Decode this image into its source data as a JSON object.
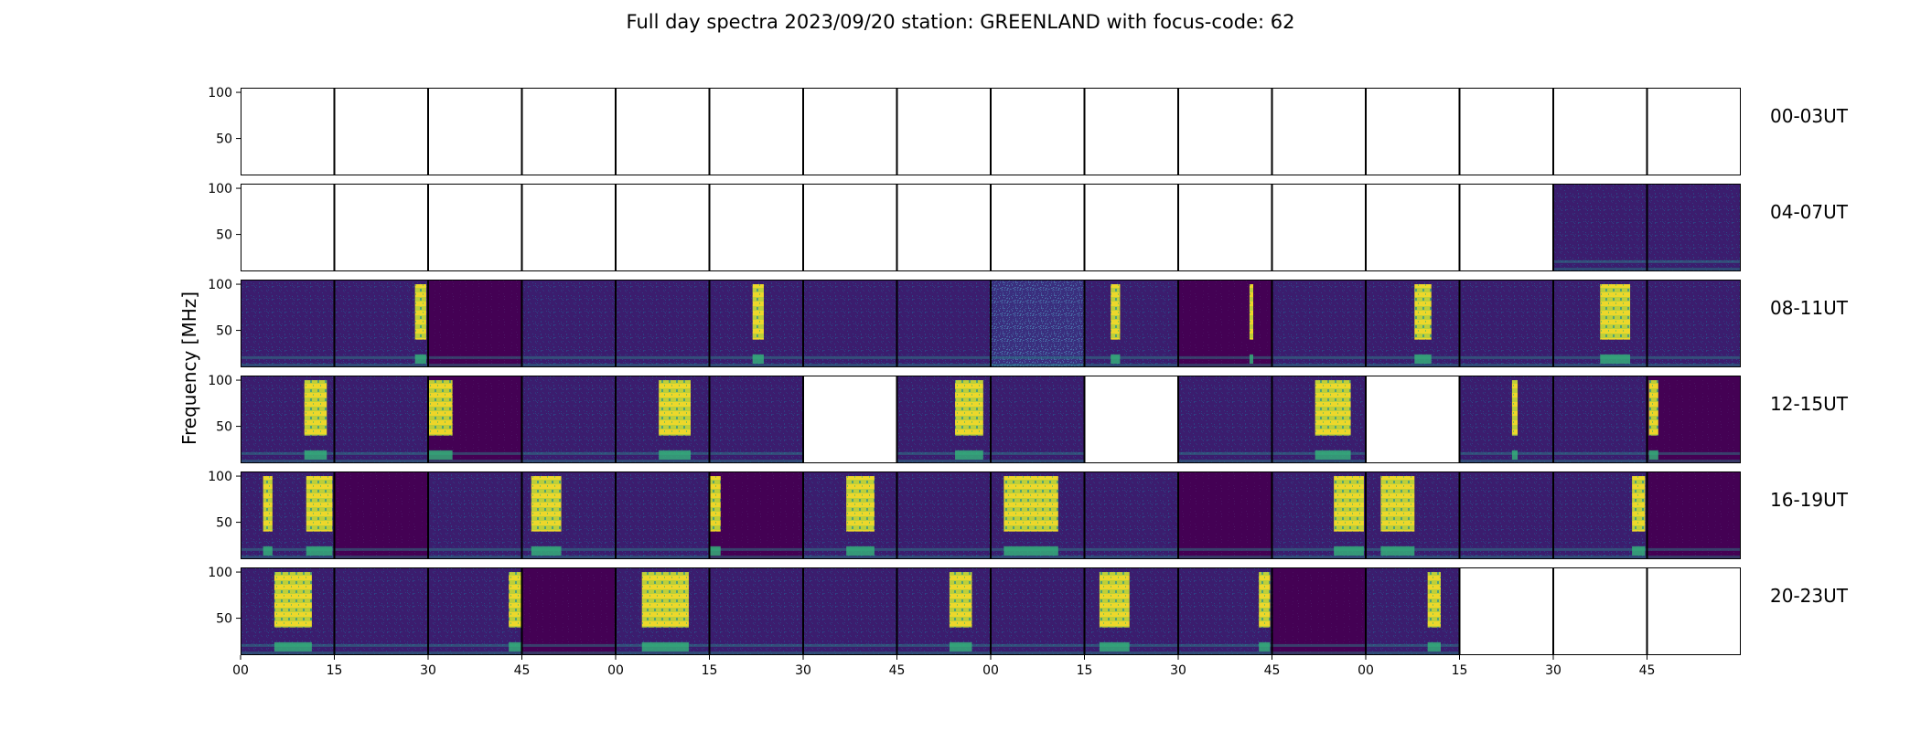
{
  "chart_data": {
    "type": "heatmap",
    "title": "Full day spectra 2023/09/20 station: GREENLAND with focus-code: 62",
    "ylabel": "Frequency [MHz]",
    "ylim": [
      10,
      105
    ],
    "yticks": [
      50,
      100
    ],
    "xticks": [
      "00",
      "15",
      "30",
      "45",
      "00",
      "15",
      "30",
      "45",
      "00",
      "15",
      "30",
      "45",
      "00",
      "15",
      "30",
      "45"
    ],
    "rows": [
      {
        "label": "00-03UT",
        "panels": [
          {
            "has_data": false
          },
          {
            "has_data": false
          },
          {
            "has_data": false
          },
          {
            "has_data": false
          },
          {
            "has_data": false
          },
          {
            "has_data": false
          },
          {
            "has_data": false
          },
          {
            "has_data": false
          },
          {
            "has_data": false
          },
          {
            "has_data": false
          },
          {
            "has_data": false
          },
          {
            "has_data": false
          },
          {
            "has_data": false
          },
          {
            "has_data": false
          },
          {
            "has_data": false
          },
          {
            "has_data": false
          }
        ]
      },
      {
        "label": "04-07UT",
        "panels": [
          {
            "has_data": false
          },
          {
            "has_data": false
          },
          {
            "has_data": false
          },
          {
            "has_data": false
          },
          {
            "has_data": false
          },
          {
            "has_data": false
          },
          {
            "has_data": false
          },
          {
            "has_data": false
          },
          {
            "has_data": false
          },
          {
            "has_data": false
          },
          {
            "has_data": false
          },
          {
            "has_data": false
          },
          {
            "has_data": false
          },
          {
            "has_data": false
          },
          {
            "has_data": true,
            "bursts": []
          },
          {
            "has_data": true,
            "bursts": []
          }
        ]
      },
      {
        "label": "08-11UT",
        "panels": [
          {
            "has_data": true,
            "bursts": []
          },
          {
            "has_data": true,
            "bursts": [
              [
                0.86,
                0.98
              ]
            ]
          },
          {
            "has_data": true,
            "dark": true,
            "bursts": []
          },
          {
            "has_data": true,
            "bursts": []
          },
          {
            "has_data": true,
            "bursts": []
          },
          {
            "has_data": true,
            "bursts": [
              [
                0.46,
                0.58
              ]
            ]
          },
          {
            "has_data": true,
            "bursts": []
          },
          {
            "has_data": true,
            "bursts": []
          },
          {
            "has_data": true,
            "noisy": true,
            "bursts": []
          },
          {
            "has_data": true,
            "bursts": [
              [
                0.28,
                0.38
              ]
            ]
          },
          {
            "has_data": true,
            "dark": true,
            "bursts": [
              [
                0.76,
                0.8
              ]
            ]
          },
          {
            "has_data": true,
            "bursts": []
          },
          {
            "has_data": true,
            "bursts": [
              [
                0.52,
                0.7
              ]
            ]
          },
          {
            "has_data": true,
            "bursts": []
          },
          {
            "has_data": true,
            "bursts": [
              [
                0.5,
                0.82
              ]
            ]
          },
          {
            "has_data": true,
            "bursts": []
          }
        ]
      },
      {
        "label": "12-15UT",
        "panels": [
          {
            "has_data": true,
            "bursts": [
              [
                0.68,
                0.92
              ]
            ]
          },
          {
            "has_data": true,
            "bursts": []
          },
          {
            "has_data": true,
            "dark": true,
            "bursts": [
              [
                0.0,
                0.26
              ]
            ]
          },
          {
            "has_data": true,
            "bursts": []
          },
          {
            "has_data": true,
            "bursts": [
              [
                0.46,
                0.8
              ]
            ]
          },
          {
            "has_data": true,
            "bursts": []
          },
          {
            "has_data": false
          },
          {
            "has_data": true,
            "bursts": [
              [
                0.62,
                0.92
              ]
            ]
          },
          {
            "has_data": true,
            "bursts": []
          },
          {
            "has_data": false
          },
          {
            "has_data": true,
            "bursts": []
          },
          {
            "has_data": true,
            "bursts": [
              [
                0.46,
                0.84
              ]
            ]
          },
          {
            "has_data": false
          },
          {
            "has_data": true,
            "bursts": [
              [
                0.56,
                0.62
              ]
            ]
          },
          {
            "has_data": true,
            "bursts": []
          },
          {
            "has_data": true,
            "dark": true,
            "bursts": [
              [
                0.02,
                0.12
              ]
            ]
          }
        ]
      },
      {
        "label": "16-19UT",
        "panels": [
          {
            "has_data": true,
            "bursts": [
              [
                0.24,
                0.34
              ],
              [
                0.7,
                0.98
              ]
            ]
          },
          {
            "has_data": true,
            "dark": true,
            "bursts": []
          },
          {
            "has_data": true,
            "bursts": []
          },
          {
            "has_data": true,
            "bursts": [
              [
                0.1,
                0.42
              ]
            ]
          },
          {
            "has_data": true,
            "bursts": []
          },
          {
            "has_data": true,
            "dark": true,
            "bursts": [
              [
                0.0,
                0.12
              ]
            ]
          },
          {
            "has_data": true,
            "bursts": [
              [
                0.46,
                0.76
              ]
            ]
          },
          {
            "has_data": true,
            "bursts": []
          },
          {
            "has_data": true,
            "bursts": [
              [
                0.14,
                0.72
              ]
            ]
          },
          {
            "has_data": true,
            "bursts": []
          },
          {
            "has_data": true,
            "dark": true,
            "bursts": []
          },
          {
            "has_data": true,
            "bursts": [
              [
                0.66,
                0.98
              ]
            ]
          },
          {
            "has_data": true,
            "bursts": [
              [
                0.16,
                0.52
              ]
            ]
          },
          {
            "has_data": true,
            "bursts": []
          },
          {
            "has_data": true,
            "bursts": [
              [
                0.84,
                0.98
              ]
            ]
          },
          {
            "has_data": true,
            "dark": true,
            "bursts": []
          }
        ]
      },
      {
        "label": "20-23UT",
        "panels": [
          {
            "has_data": true,
            "bursts": [
              [
                0.36,
                0.76
              ]
            ]
          },
          {
            "has_data": true,
            "bursts": []
          },
          {
            "has_data": true,
            "bursts": [
              [
                0.86,
                1.0
              ]
            ]
          },
          {
            "has_data": true,
            "dark": true,
            "bursts": []
          },
          {
            "has_data": true,
            "bursts": [
              [
                0.28,
                0.78
              ]
            ]
          },
          {
            "has_data": true,
            "bursts": []
          },
          {
            "has_data": true,
            "bursts": []
          },
          {
            "has_data": true,
            "bursts": [
              [
                0.56,
                0.8
              ]
            ]
          },
          {
            "has_data": true,
            "bursts": []
          },
          {
            "has_data": true,
            "bursts": [
              [
                0.16,
                0.48
              ]
            ]
          },
          {
            "has_data": true,
            "bursts": [
              [
                0.86,
                0.98
              ]
            ]
          },
          {
            "has_data": true,
            "dark": true,
            "bursts": []
          },
          {
            "has_data": true,
            "bursts": [
              [
                0.66,
                0.8
              ]
            ]
          },
          {
            "has_data": false
          },
          {
            "has_data": false
          },
          {
            "has_data": false
          }
        ]
      }
    ],
    "colormap": {
      "background": "#3b1d6e",
      "dark": "#440154",
      "mid": "#2c728e",
      "bright": "#fde725"
    },
    "grid": false
  }
}
